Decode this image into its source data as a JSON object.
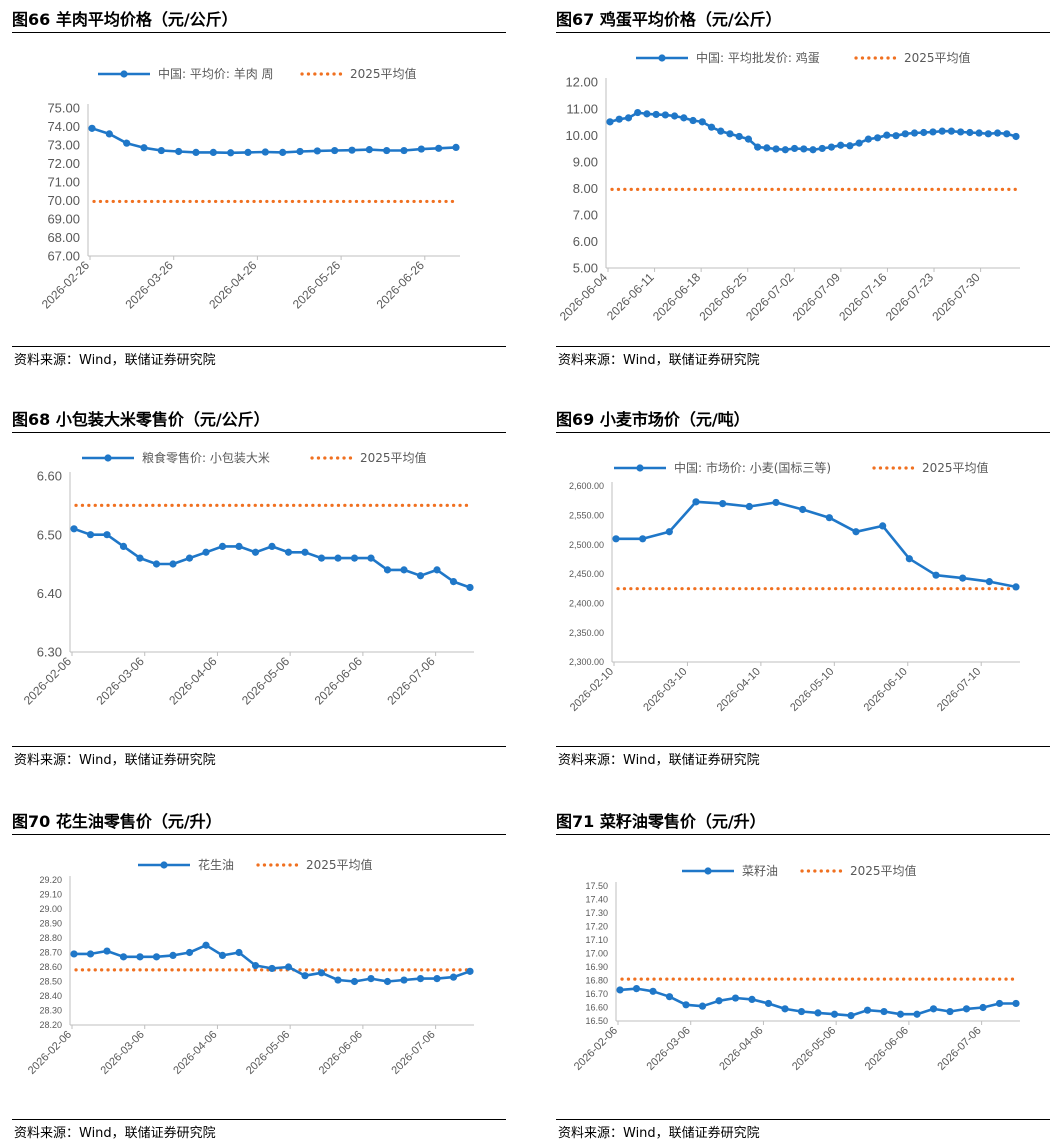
{
  "source_text": "资料来源：Wind，联储证券研究院",
  "colors": {
    "series": "#1F77C8",
    "avg": "#F07020",
    "axis": "#BFBFBF",
    "text": "#595959"
  },
  "charts": [
    {
      "title": "图66 羊肉平均价格（元/公斤）",
      "chart_data": {
        "type": "line",
        "series": [
          {
            "name": "中国: 平均价: 羊肉 周",
            "values": [
              73.9,
              73.6,
              73.1,
              72.85,
              72.7,
              72.65,
              72.6,
              72.6,
              72.58,
              72.6,
              72.62,
              72.6,
              72.65,
              72.68,
              72.7,
              72.72,
              72.75,
              72.7,
              72.7,
              72.78,
              72.82,
              72.87
            ]
          },
          {
            "name": "2025平均值",
            "values": [
              69.95,
              69.95
            ]
          }
        ],
        "x_tick_labels": [
          "2026-02-26",
          "2026-03-26",
          "2026-04-26",
          "2026-05-26",
          "2026-06-26"
        ],
        "y_tick_labels": [
          "67.00",
          "68.00",
          "69.00",
          "70.00",
          "71.00",
          "72.00",
          "73.00",
          "74.00",
          "75.00"
        ],
        "ylim": [
          67,
          75
        ]
      }
    },
    {
      "title": "图67 鸡蛋平均价格（元/公斤）",
      "chart_data": {
        "type": "line",
        "series": [
          {
            "name": "中国: 平均批发价: 鸡蛋",
            "values": [
              10.5,
              10.6,
              10.65,
              10.85,
              10.8,
              10.78,
              10.76,
              10.72,
              10.65,
              10.55,
              10.5,
              10.3,
              10.15,
              10.05,
              9.95,
              9.85,
              9.55,
              9.52,
              9.48,
              9.45,
              9.5,
              9.48,
              9.45,
              9.5,
              9.55,
              9.62,
              9.6,
              9.7,
              9.85,
              9.9,
              10.0,
              9.98,
              10.05,
              10.08,
              10.1,
              10.12,
              10.15,
              10.15,
              10.12,
              10.1,
              10.08,
              10.05,
              10.08,
              10.05,
              9.95
            ]
          },
          {
            "name": "2025平均值",
            "values": [
              7.96,
              7.96
            ]
          }
        ],
        "x_tick_labels": [
          "2026-06-04",
          "2026-06-11",
          "2026-06-18",
          "2026-06-25",
          "2026-07-02",
          "2026-07-09",
          "2026-07-16",
          "2026-07-23",
          "2026-07-30"
        ],
        "y_tick_labels": [
          "5.00",
          "6.00",
          "7.00",
          "8.00",
          "9.00",
          "10.00",
          "11.00",
          "12.00"
        ],
        "ylim": [
          5,
          12
        ]
      }
    },
    {
      "title": "图68 小包装大米零售价（元/公斤）",
      "chart_data": {
        "type": "line",
        "series": [
          {
            "name": "粮食零售价: 小包装大米",
            "values": [
              6.51,
              6.5,
              6.5,
              6.48,
              6.46,
              6.45,
              6.45,
              6.46,
              6.47,
              6.48,
              6.48,
              6.47,
              6.48,
              6.47,
              6.47,
              6.46,
              6.46,
              6.46,
              6.46,
              6.44,
              6.44,
              6.43,
              6.44,
              6.42,
              6.41
            ]
          },
          {
            "name": "2025平均值",
            "values": [
              6.55,
              6.55
            ]
          }
        ],
        "x_tick_labels": [
          "2026-02-06",
          "2026-03-06",
          "2026-04-06",
          "2026-05-06",
          "2026-06-06",
          "2026-07-06"
        ],
        "y_tick_labels": [
          "6.30",
          "6.40",
          "6.50",
          "6.60"
        ],
        "ylim": [
          6.3,
          6.6
        ]
      }
    },
    {
      "title": "图69 小麦市场价（元/吨）",
      "chart_data": {
        "type": "line",
        "series": [
          {
            "name": "中国: 市场价: 小麦(国标三等)",
            "values": [
              2510,
              2510,
              2522,
              2573,
              2570,
              2565,
              2572,
              2560,
              2546,
              2522,
              2532,
              2476,
              2448,
              2443,
              2437,
              2428
            ]
          },
          {
            "name": "2025平均值",
            "values": [
              2425,
              2425
            ]
          }
        ],
        "x_tick_labels": [
          "2026-02-10",
          "2026-03-10",
          "2026-04-10",
          "2026-05-10",
          "2026-06-10",
          "2026-07-10"
        ],
        "y_tick_labels": [
          "2,300.00",
          "2,350.00",
          "2,400.00",
          "2,450.00",
          "2,500.00",
          "2,550.00",
          "2,600.00"
        ],
        "ylim": [
          2300,
          2600
        ]
      }
    },
    {
      "title": "图70 花生油零售价（元/升）",
      "chart_data": {
        "type": "line",
        "series": [
          {
            "name": "花生油",
            "values": [
              28.69,
              28.69,
              28.71,
              28.67,
              28.67,
              28.67,
              28.68,
              28.7,
              28.75,
              28.68,
              28.7,
              28.61,
              28.59,
              28.6,
              28.54,
              28.56,
              28.51,
              28.5,
              28.52,
              28.5,
              28.51,
              28.52,
              28.52,
              28.53,
              28.57
            ]
          },
          {
            "name": "2025平均值",
            "values": [
              28.58,
              28.58
            ]
          }
        ],
        "x_tick_labels": [
          "2026-02-06",
          "2026-03-06",
          "2026-04-06",
          "2026-05-06",
          "2026-06-06",
          "2026-07-06"
        ],
        "y_tick_labels": [
          "28.20",
          "28.30",
          "28.40",
          "28.50",
          "28.60",
          "28.70",
          "28.80",
          "28.90",
          "29.00",
          "29.10",
          "29.20"
        ],
        "ylim": [
          28.2,
          29.2
        ]
      }
    },
    {
      "title": "图71 菜籽油零售价（元/升）",
      "chart_data": {
        "type": "line",
        "series": [
          {
            "name": "菜籽油",
            "values": [
              16.73,
              16.74,
              16.72,
              16.68,
              16.62,
              16.61,
              16.65,
              16.67,
              16.66,
              16.63,
              16.59,
              16.57,
              16.56,
              16.55,
              16.54,
              16.58,
              16.57,
              16.55,
              16.55,
              16.59,
              16.57,
              16.59,
              16.6,
              16.63,
              16.63
            ]
          },
          {
            "name": "2025平均值",
            "values": [
              16.81,
              16.81
            ]
          }
        ],
        "x_tick_labels": [
          "2026-02-06",
          "2026-03-06",
          "2026-04-06",
          "2026-05-06",
          "2026-06-06",
          "2026-07-06"
        ],
        "y_tick_labels": [
          "16.50",
          "16.60",
          "16.70",
          "16.80",
          "16.90",
          "17.00",
          "17.10",
          "17.20",
          "17.30",
          "17.40",
          "17.50"
        ],
        "ylim": [
          16.5,
          17.5
        ]
      }
    }
  ]
}
